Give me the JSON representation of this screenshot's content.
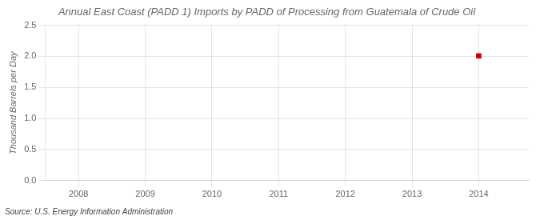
{
  "chart_data": {
    "type": "scatter",
    "title": "Annual East Coast (PADD 1) Imports by PADD of Processing from Guatemala of Crude Oil",
    "ylabel": "Thousand Barrels per Day",
    "source": "Source: U.S. Energy Information Administration",
    "x": [
      2014
    ],
    "values": [
      2.007
    ],
    "color": "#cc0000",
    "marker": "square",
    "xlim": [
      2007.5,
      2014.75
    ],
    "xticks": [
      2008,
      2009,
      2010,
      2011,
      2012,
      2013,
      2014
    ],
    "ylim": [
      0,
      2.5
    ],
    "yticks": [
      {
        "value": 0,
        "label": "0.0"
      },
      0.5,
      {
        "value": 1,
        "label": "1.0"
      },
      1.5,
      {
        "value": 2,
        "label": "2.0"
      },
      2.5
    ],
    "grid": true
  }
}
